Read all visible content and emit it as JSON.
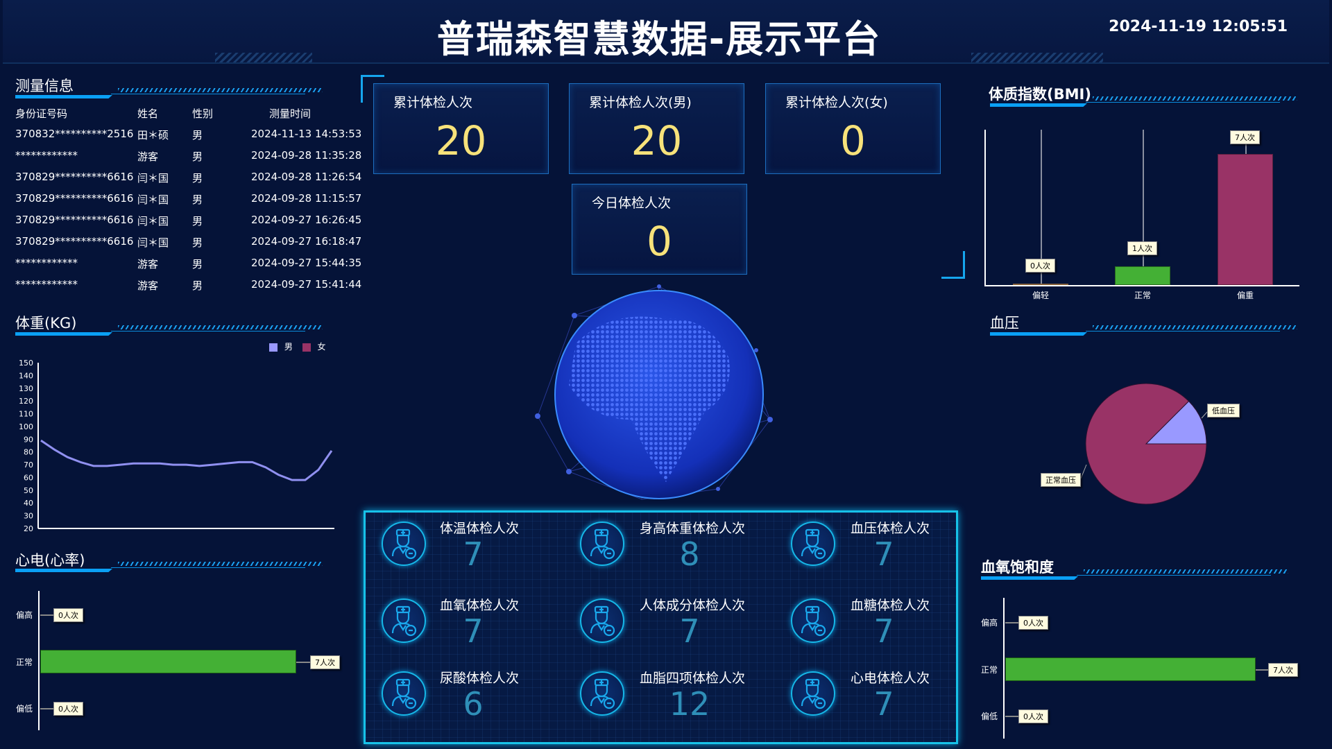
{
  "header": {
    "title": "普瑞森智慧数据-展示平台",
    "datetime": "2024-11-19 12:05:51"
  },
  "measure": {
    "title": "测量信息",
    "columns": [
      "身份证号码",
      "姓名",
      "性别",
      "测量时间"
    ],
    "rows": [
      [
        "370832**********2516",
        "田＊硕",
        "男",
        "2024-11-13 14:53:53"
      ],
      [
        "************",
        "游客",
        "男",
        "2024-09-28 11:35:28"
      ],
      [
        "370829**********6616",
        "闫＊国",
        "男",
        "2024-09-28 11:26:54"
      ],
      [
        "370829**********6616",
        "闫＊国",
        "男",
        "2024-09-28 11:15:57"
      ],
      [
        "370829**********6616",
        "闫＊国",
        "男",
        "2024-09-27 16:26:45"
      ],
      [
        "370829**********6616",
        "闫＊国",
        "男",
        "2024-09-27 16:18:47"
      ],
      [
        "************",
        "游客",
        "男",
        "2024-09-27 15:44:35"
      ],
      [
        "************",
        "游客",
        "男",
        "2024-09-27 15:41:44"
      ]
    ]
  },
  "colors": {
    "male": "#9999ff",
    "female": "#993366",
    "normal": "#44b035",
    "accent": "#0aa0f5",
    "number": "#f7e27a"
  },
  "cards": [
    {
      "label": "累计体检人次",
      "value": "20"
    },
    {
      "label": "累计体检人次(男)",
      "value": "20"
    },
    {
      "label": "累计体检人次(女)",
      "value": "0"
    },
    {
      "label": "今日体检人次",
      "value": "0"
    }
  ],
  "stats": [
    {
      "label": "体温体检人次",
      "value": "7",
      "icon": "doctor-icon"
    },
    {
      "label": "身高体重体检人次",
      "value": "8",
      "icon": "doctor-icon"
    },
    {
      "label": "血压体检人次",
      "value": "7",
      "icon": "doctor-icon"
    },
    {
      "label": "血氧体检人次",
      "value": "7",
      "icon": "doctor-icon"
    },
    {
      "label": "人体成分体检人次",
      "value": "7",
      "icon": "doctor-icon"
    },
    {
      "label": "血糖体检人次",
      "value": "7",
      "icon": "doctor-icon"
    },
    {
      "label": "尿酸体检人次",
      "value": "6",
      "icon": "doctor-icon"
    },
    {
      "label": "血脂四项体检人次",
      "value": "12",
      "icon": "doctor-icon"
    },
    {
      "label": "心电体检人次",
      "value": "7",
      "icon": "doctor-icon"
    }
  ],
  "chart_data": [
    {
      "id": "weight",
      "type": "line",
      "title": "体重(KG)",
      "legend": [
        "男",
        "女"
      ],
      "legend_position": "top-right",
      "yticks": [
        20,
        30,
        40,
        50,
        60,
        70,
        80,
        90,
        100,
        110,
        120,
        130,
        140,
        150
      ],
      "ylim": [
        20,
        150
      ],
      "series": [
        {
          "name": "男",
          "values": [
            89,
            82,
            76,
            72,
            69,
            69,
            70,
            71,
            71,
            71,
            70,
            70,
            69,
            70,
            71,
            72,
            72,
            68,
            62,
            58,
            58,
            66,
            81
          ]
        }
      ]
    },
    {
      "id": "ecg",
      "type": "bar",
      "orientation": "horizontal",
      "title": "心电(心率)",
      "categories": [
        "偏高",
        "正常",
        "偏低"
      ],
      "values": [
        0,
        7,
        0
      ],
      "labels": [
        "0人次",
        "7人次",
        "0人次"
      ]
    },
    {
      "id": "bmi",
      "type": "bar",
      "title": "体质指数(BMI)",
      "categories": [
        "偏轻",
        "正常",
        "偏重"
      ],
      "values": [
        0,
        1,
        7
      ],
      "labels": [
        "0人次",
        "1人次",
        "7人次"
      ],
      "bar_colors": [
        "#e0a060",
        "#44b035",
        "#993366"
      ]
    },
    {
      "id": "bp",
      "type": "pie",
      "title": "血压",
      "categories": [
        "低血压",
        "正常血压"
      ],
      "values": [
        1,
        7
      ],
      "slice_colors": [
        "#9999ff",
        "#993366"
      ]
    },
    {
      "id": "spo2",
      "type": "bar",
      "orientation": "horizontal",
      "title": "血氧饱和度",
      "categories": [
        "偏高",
        "正常",
        "偏低"
      ],
      "values": [
        0,
        7,
        0
      ],
      "labels": [
        "0人次",
        "7人次",
        "0人次"
      ]
    }
  ]
}
